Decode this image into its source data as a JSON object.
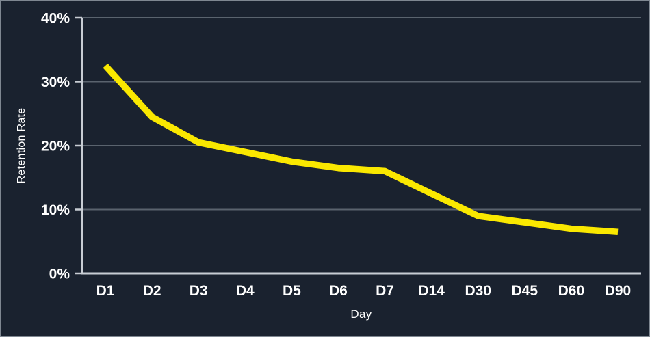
{
  "chart": {
    "y_axis_title": "Retention Rate",
    "x_axis_title": "Day",
    "colors": {
      "background": "#1a222f",
      "line": "#fae800",
      "grid": "#5a636e",
      "axis": "#c8cdd4",
      "text": "#ffffff",
      "frame_border": "#7f8791"
    }
  },
  "chart_data": {
    "type": "line",
    "title": "",
    "xlabel": "Day",
    "ylabel": "Retention Rate",
    "categories": [
      "D1",
      "D2",
      "D3",
      "D4",
      "D5",
      "D6",
      "D7",
      "D14",
      "D30",
      "D45",
      "D60",
      "D90"
    ],
    "values": [
      32.5,
      24.5,
      20.5,
      19,
      17.5,
      16.5,
      16,
      12.5,
      9,
      8,
      7,
      6.5
    ],
    "series": [
      {
        "name": "Retention Rate",
        "values": [
          32.5,
          24.5,
          20.5,
          19,
          17.5,
          16.5,
          16,
          12.5,
          9,
          8,
          7,
          6.5
        ]
      }
    ],
    "ylim": [
      0,
      40
    ],
    "y_ticks": [
      {
        "value": 0,
        "label": "0%"
      },
      {
        "value": 10,
        "label": "10%"
      },
      {
        "value": 20,
        "label": "20%"
      },
      {
        "value": 30,
        "label": "30%"
      },
      {
        "value": 40,
        "label": "40%"
      }
    ],
    "grid": true,
    "legend_position": "none"
  }
}
